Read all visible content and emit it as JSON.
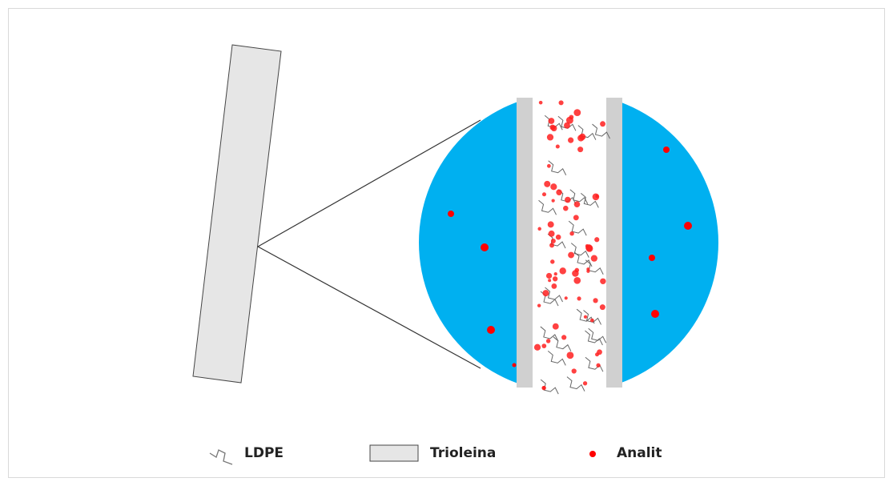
{
  "legend": {
    "items": [
      {
        "label": "LDPE"
      },
      {
        "label": "Trioleina"
      },
      {
        "label": "Analit"
      }
    ]
  }
}
